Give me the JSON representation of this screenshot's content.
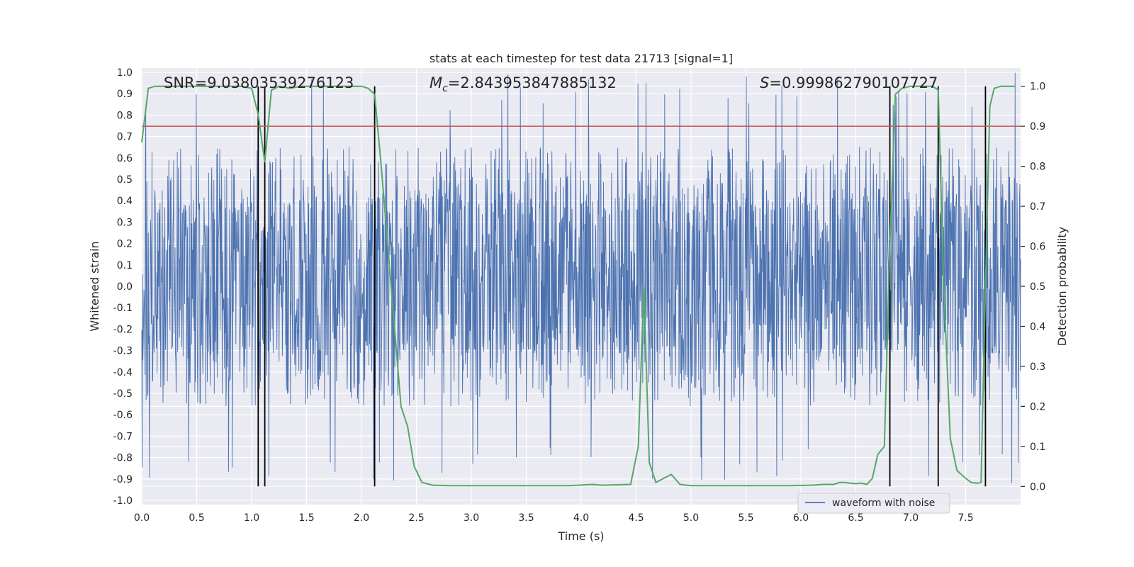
{
  "chart_data": {
    "type": "line",
    "title": "stats at each timestep for test data 21713 [signal=1]",
    "xlabel": "Time (s)",
    "ylabel": "Whitened strain",
    "y2label": "Detection probability",
    "xlim": [
      0.0,
      8.0
    ],
    "ylim": [
      -1.02,
      1.02
    ],
    "y2lim": [
      -0.0455,
      1.0455
    ],
    "x_ticks": [
      "0.0",
      "0.5",
      "1.0",
      "1.5",
      "2.0",
      "2.5",
      "3.0",
      "3.5",
      "4.0",
      "4.5",
      "5.0",
      "5.5",
      "6.0",
      "6.5",
      "7.0",
      "7.5"
    ],
    "y_ticks": [
      "-1.0",
      "-0.9",
      "-0.8",
      "-0.7",
      "-0.6",
      "-0.5",
      "-0.4",
      "-0.3",
      "-0.2",
      "-0.1",
      "0.0",
      "0.1",
      "0.2",
      "0.3",
      "0.4",
      "0.5",
      "0.6",
      "0.7",
      "0.8",
      "0.9",
      "1.0"
    ],
    "y2_ticks": [
      "0.0",
      "0.1",
      "0.2",
      "0.3",
      "0.4",
      "0.5",
      "0.6",
      "0.7",
      "0.8",
      "0.9",
      "1.0"
    ],
    "grid": true,
    "annotations": {
      "snr": "SNR=9.03803539276123",
      "mc_symbol": "M",
      "mc_sub": "c",
      "mc_value": "=2.843953847885132",
      "s_symbol": "S",
      "s_value": "=0.999862790107727"
    },
    "legend": {
      "placement": "lower-right",
      "entries": [
        "waveform with noise"
      ]
    },
    "threshold": {
      "axis": "right",
      "value": 0.9,
      "color": "#c44e52"
    },
    "vertical_lines": {
      "x": [
        1.06,
        1.12,
        2.12,
        6.81,
        7.25,
        7.68
      ],
      "color": "#000000"
    },
    "series": [
      {
        "name": "waveform with noise",
        "axis": "left",
        "color": "#4c72b0",
        "kind": "dense-noise",
        "sample_rate_hz": 300,
        "x_range": [
          0.0,
          8.0
        ],
        "core_band": [
          -0.33,
          0.42
        ],
        "spike_max": 1.0,
        "spike_min": -0.92
      },
      {
        "axis": "right",
        "color": "#55a868",
        "x": [
          0.0,
          0.06,
          0.12,
          0.18,
          0.3,
          0.5,
          0.7,
          0.9,
          1.0,
          1.06,
          1.12,
          1.18,
          1.25,
          1.35,
          1.45,
          1.6,
          1.8,
          2.0,
          2.06,
          2.12,
          2.18,
          2.24,
          2.3,
          2.36,
          2.42,
          2.48,
          2.55,
          2.65,
          2.8,
          3.0,
          3.3,
          3.6,
          3.9,
          4.1,
          4.2,
          4.3,
          4.45,
          4.52,
          4.57,
          4.62,
          4.68,
          4.75,
          4.82,
          4.9,
          5.0,
          5.3,
          5.6,
          5.9,
          6.1,
          6.2,
          6.3,
          6.35,
          6.4,
          6.45,
          6.5,
          6.55,
          6.6,
          6.65,
          6.7,
          6.76,
          6.81,
          6.86,
          6.92,
          7.0,
          7.1,
          7.2,
          7.25,
          7.3,
          7.36,
          7.42,
          7.5,
          7.55,
          7.6,
          7.64,
          7.68,
          7.72,
          7.76,
          7.82,
          7.9,
          7.95
        ],
        "y": [
          0.86,
          0.995,
          1.0,
          1.0,
          1.0,
          1.0,
          1.0,
          1.0,
          0.995,
          0.93,
          0.81,
          0.99,
          1.0,
          0.995,
          1.0,
          1.0,
          1.0,
          1.0,
          0.995,
          0.98,
          0.8,
          0.6,
          0.4,
          0.2,
          0.15,
          0.05,
          0.01,
          0.003,
          0.002,
          0.002,
          0.002,
          0.002,
          0.002,
          0.005,
          0.003,
          0.004,
          0.005,
          0.1,
          0.5,
          0.06,
          0.01,
          0.02,
          0.03,
          0.005,
          0.002,
          0.002,
          0.002,
          0.002,
          0.003,
          0.005,
          0.005,
          0.01,
          0.01,
          0.008,
          0.007,
          0.008,
          0.005,
          0.02,
          0.08,
          0.1,
          0.6,
          0.98,
          0.995,
          1.0,
          1.0,
          1.0,
          0.99,
          0.5,
          0.12,
          0.04,
          0.02,
          0.01,
          0.008,
          0.01,
          0.5,
          0.95,
          0.995,
          1.0,
          1.0,
          1.0
        ]
      }
    ]
  }
}
